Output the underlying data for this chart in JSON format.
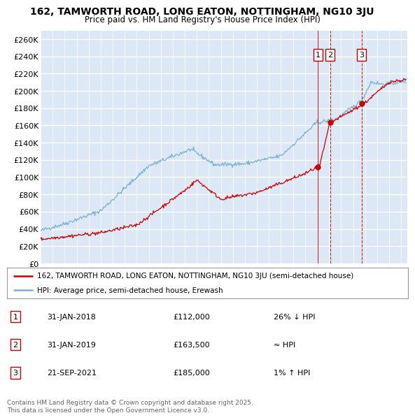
{
  "title": "162, TAMWORTH ROAD, LONG EATON, NOTTINGHAM, NG10 3JU",
  "subtitle": "Price paid vs. HM Land Registry's House Price Index (HPI)",
  "ylabel_ticks": [
    "£0",
    "£20K",
    "£40K",
    "£60K",
    "£80K",
    "£100K",
    "£120K",
    "£140K",
    "£160K",
    "£180K",
    "£200K",
    "£220K",
    "£240K",
    "£260K"
  ],
  "ytick_vals": [
    0,
    20000,
    40000,
    60000,
    80000,
    100000,
    120000,
    140000,
    160000,
    180000,
    200000,
    220000,
    240000,
    260000
  ],
  "hpi_color": "#7ab0d4",
  "price_color": "#cc0000",
  "vline_color": "#cc0000",
  "background_color": "#dce8f5",
  "grid_color": "#ffffff",
  "purchases": [
    {
      "label": "1",
      "date_x": 2018.08,
      "price": 112000,
      "note": "26% ↓ HPI"
    },
    {
      "label": "2",
      "date_x": 2019.08,
      "price": 163500,
      "note": "≈ HPI"
    },
    {
      "label": "3",
      "date_x": 2021.72,
      "price": 185000,
      "note": "1% ↑ HPI"
    }
  ],
  "purchase_dates_display": [
    "31-JAN-2018",
    "31-JAN-2019",
    "21-SEP-2021"
  ],
  "purchase_prices_display": [
    "£112,000",
    "£163,500",
    "£185,000"
  ],
  "legend_line1": "162, TAMWORTH ROAD, LONG EATON, NOTTINGHAM, NG10 3JU (semi-detached house)",
  "legend_line2": "HPI: Average price, semi-detached house, Erewash",
  "footer": "Contains HM Land Registry data © Crown copyright and database right 2025.\nThis data is licensed under the Open Government Licence v3.0.",
  "xmin": 1995,
  "xmax": 2025.5,
  "ymin": 0,
  "ymax": 270000
}
